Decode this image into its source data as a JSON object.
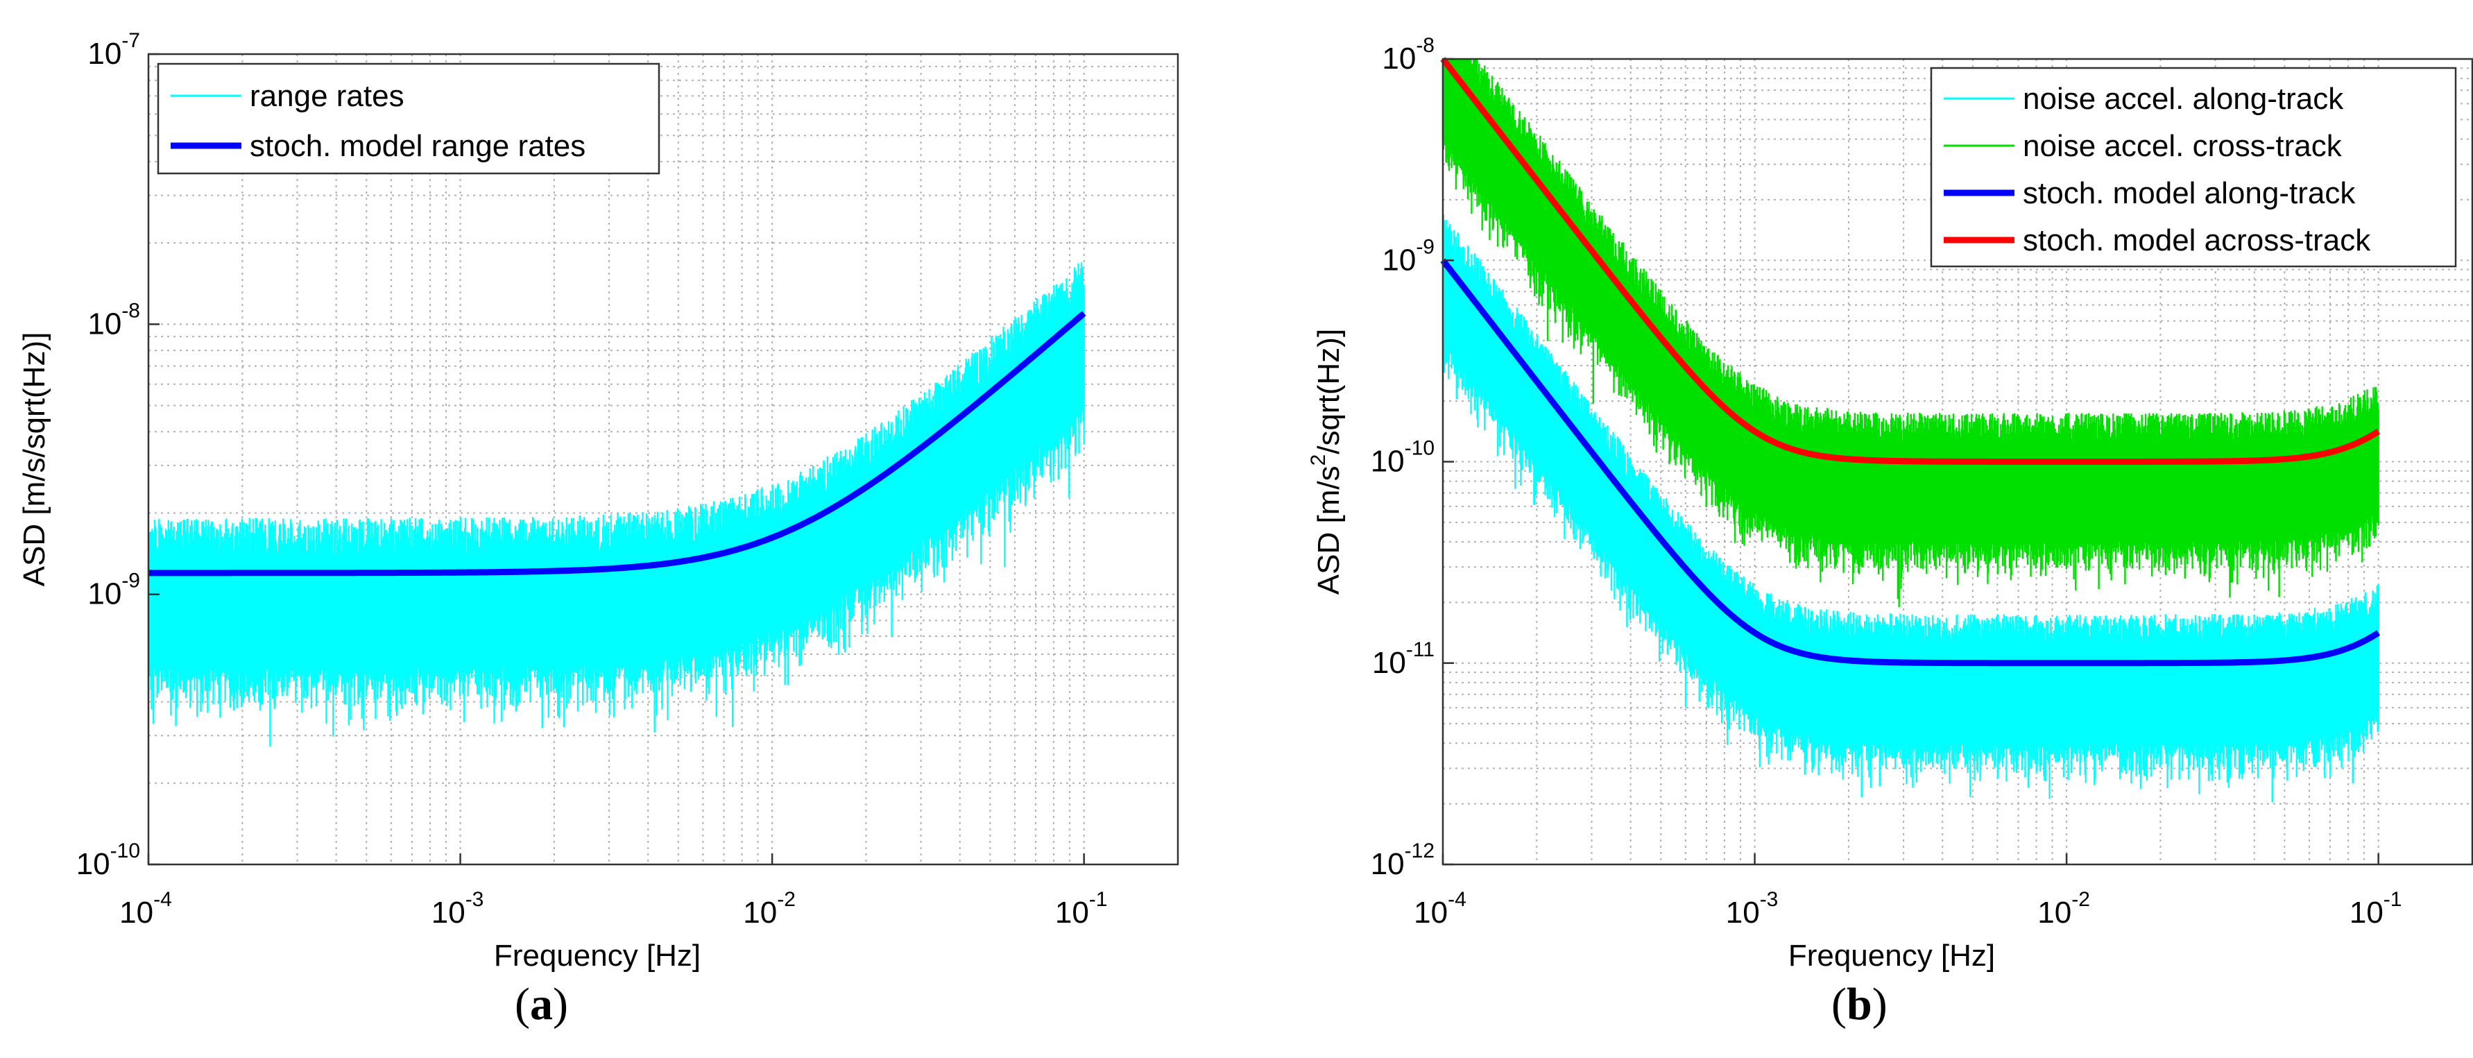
{
  "colors": {
    "range_rates": "#00ffff",
    "noise_along": "#00ffff",
    "noise_cross": "#00e000",
    "model_along": "#0000ff",
    "model_across": "#ff0000"
  },
  "chart_data": [
    {
      "id": "a",
      "type": "line",
      "panel_label": "(a)",
      "panel_letter": "a",
      "xscale": "log",
      "yscale": "log",
      "xlim": [
        0.0001,
        0.2
      ],
      "ylim": [
        1e-10,
        1e-07
      ],
      "xlabel": "Frequency [Hz]",
      "ylabel": "ASD [m/s/sqrt(Hz)]",
      "grid": true,
      "legend_location": "top-left",
      "x_ticks": [
        {
          "value": 0.0001,
          "base": "10",
          "exp": "-4"
        },
        {
          "value": 0.001,
          "base": "10",
          "exp": "-3"
        },
        {
          "value": 0.01,
          "base": "10",
          "exp": "-2"
        },
        {
          "value": 0.1,
          "base": "10",
          "exp": "-1"
        }
      ],
      "y_ticks": [
        {
          "value": 1e-10,
          "base": "10",
          "exp": "-10"
        },
        {
          "value": 1e-09,
          "base": "10",
          "exp": "-9"
        },
        {
          "value": 1e-08,
          "base": "10",
          "exp": "-8"
        },
        {
          "value": 1e-07,
          "base": "10",
          "exp": "-7"
        }
      ],
      "series": [
        {
          "name": "range rates",
          "kind": "noise",
          "color_key": "range_rates",
          "x_range": [
            0.0001,
            0.1
          ],
          "model": {
            "a": 1.2e-09,
            "fc": 0.011,
            "slope": 1
          },
          "lower_factor": 0.45,
          "upper_factor": 1.6
        },
        {
          "name": "stoch. model range rates",
          "kind": "model",
          "color_key": "model_along",
          "x_range": [
            0.0001,
            0.1
          ],
          "model": {
            "a": 1.2e-09,
            "fc": 0.011,
            "slope": 1
          }
        }
      ]
    },
    {
      "id": "b",
      "type": "line",
      "panel_label": "(b)",
      "panel_letter": "b",
      "xscale": "log",
      "yscale": "log",
      "xlim": [
        0.0001,
        0.2
      ],
      "ylim": [
        1e-12,
        1e-08
      ],
      "xlabel": "Frequency [Hz]",
      "ylabel_prefix": "ASD [m/s",
      "ylabel_sup": "2",
      "ylabel_suffix": "/sqrt(Hz)]",
      "grid": true,
      "legend_location": "top-right",
      "x_ticks": [
        {
          "value": 0.0001,
          "base": "10",
          "exp": "-4"
        },
        {
          "value": 0.001,
          "base": "10",
          "exp": "-3"
        },
        {
          "value": 0.01,
          "base": "10",
          "exp": "-2"
        },
        {
          "value": 0.1,
          "base": "10",
          "exp": "-1"
        }
      ],
      "y_ticks": [
        {
          "value": 1e-12,
          "base": "10",
          "exp": "-12"
        },
        {
          "value": 1e-11,
          "base": "10",
          "exp": "-11"
        },
        {
          "value": 1e-10,
          "base": "10",
          "exp": "-10"
        },
        {
          "value": 1e-09,
          "base": "10",
          "exp": "-9"
        },
        {
          "value": 1e-08,
          "base": "10",
          "exp": "-8"
        }
      ],
      "series": [
        {
          "name": "noise accel. along-track",
          "kind": "noise",
          "color_key": "noise_along",
          "x_range": [
            0.0001,
            0.1
          ],
          "model": {
            "floor": 1e-11,
            "fc": 0.001,
            "low_slope": 2,
            "high_fc": 0.1,
            "high_slope": 2
          },
          "lower_factor": 0.4,
          "upper_factor": 1.75
        },
        {
          "name": "noise accel. cross-track",
          "kind": "noise",
          "color_key": "noise_cross",
          "x_range": [
            0.0001,
            0.1
          ],
          "model": {
            "floor": 1e-10,
            "fc": 0.001,
            "low_slope": 2,
            "high_fc": 0.1,
            "high_slope": 2
          },
          "lower_factor": 0.4,
          "upper_factor": 1.75
        },
        {
          "name": "stoch. model along-track",
          "kind": "model",
          "color_key": "model_along",
          "x_range": [
            0.0001,
            0.1
          ],
          "model": {
            "floor": 1e-11,
            "fc": 0.001,
            "low_slope": 2,
            "high_fc": 0.1,
            "high_slope": 2
          }
        },
        {
          "name": "stoch. model across-track",
          "kind": "model",
          "color_key": "model_across",
          "x_range": [
            0.0001,
            0.1
          ],
          "model": {
            "floor": 1e-10,
            "fc": 0.001,
            "low_slope": 2,
            "high_fc": 0.1,
            "high_slope": 2
          }
        }
      ]
    }
  ]
}
